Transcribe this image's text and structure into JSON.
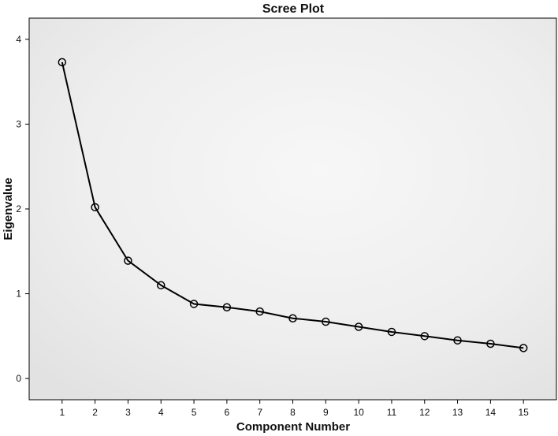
{
  "chart_data": {
    "type": "line",
    "title": "Scree Plot",
    "xlabel": "Component Number",
    "ylabel": "Eigenvalue",
    "x": [
      1,
      2,
      3,
      4,
      5,
      6,
      7,
      8,
      9,
      10,
      11,
      12,
      13,
      14,
      15
    ],
    "values": [
      3.73,
      2.02,
      1.39,
      1.1,
      0.88,
      0.84,
      0.79,
      0.71,
      0.67,
      0.61,
      0.55,
      0.5,
      0.45,
      0.41,
      0.36
    ],
    "xlim": [
      0,
      16
    ],
    "ylim": [
      -0.25,
      4.25
    ],
    "yticks": [
      0,
      1,
      2,
      3,
      4
    ],
    "xticks": [
      1,
      2,
      3,
      4,
      5,
      6,
      7,
      8,
      9,
      10,
      11,
      12,
      13,
      14,
      15
    ],
    "marker": "open-circle",
    "grid": false,
    "legend": "none",
    "colors": {
      "line": "#000000",
      "background": "#e8e8e8"
    }
  }
}
